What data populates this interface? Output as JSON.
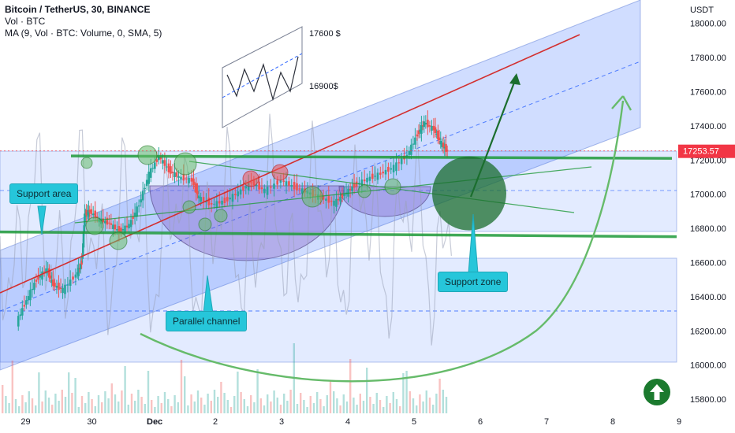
{
  "legend": {
    "title": "Bitcoin / TetherUS, 30, BINANCE",
    "vol": "Vol · BTC",
    "ma": "MA (9, Vol · BTC: Volume, 0, SMA, 5)"
  },
  "currency": "USDT",
  "price_badge": "17253.57",
  "callouts": {
    "support_area": "Support area",
    "parallel_channel": "Parallel channel",
    "support_zone": "Support zone"
  },
  "pattern": {
    "upper": "17600 $",
    "lower": "16900$"
  },
  "colors": {
    "channel_fill": "#2962ff",
    "green": "#1f9a3a",
    "red": "#d32f2f",
    "callout": "#26c6da",
    "badge": "#f23645",
    "candle_up": "#26a69a",
    "candle_down": "#ef5350"
  },
  "icons": {
    "up": "arrow-up-circle-icon"
  },
  "chart_data": {
    "type": "candlestick",
    "title": "Bitcoin / TetherUS, 30, BINANCE",
    "ylabel": "USDT",
    "ylim": [
      15720,
      18140
    ],
    "y_ticks": [
      "18000.00",
      "17800.00",
      "17600.00",
      "17400.00",
      "17200.00",
      "17000.00",
      "16800.00",
      "16600.00",
      "16400.00",
      "16200.00",
      "16000.00",
      "15800.00"
    ],
    "x_ticks": [
      "29",
      "30",
      "Dec",
      "2",
      "3",
      "4",
      "5",
      "6",
      "7",
      "8",
      "9"
    ],
    "last_price": 17253.57,
    "price_path": [
      {
        "day": -2.0,
        "price": 16250
      },
      {
        "day": -1.85,
        "price": 16380
      },
      {
        "day": -1.7,
        "price": 16500
      },
      {
        "day": -1.55,
        "price": 16560
      },
      {
        "day": -1.45,
        "price": 16470
      },
      {
        "day": -1.3,
        "price": 16440
      },
      {
        "day": -1.1,
        "price": 16530
      },
      {
        "day": -1.02,
        "price": 16600
      },
      {
        "day": -0.98,
        "price": 16880
      },
      {
        "day": -0.9,
        "price": 16900
      },
      {
        "day": -0.75,
        "price": 16850
      },
      {
        "day": -0.6,
        "price": 16830
      },
      {
        "day": -0.45,
        "price": 16780
      },
      {
        "day": -0.3,
        "price": 16820
      },
      {
        "day": -0.15,
        "price": 16940
      },
      {
        "day": 0.0,
        "price": 17120
      },
      {
        "day": 0.15,
        "price": 17220
      },
      {
        "day": 0.3,
        "price": 17140
      },
      {
        "day": 0.45,
        "price": 17100
      },
      {
        "day": 0.65,
        "price": 17080
      },
      {
        "day": 0.75,
        "price": 16980
      },
      {
        "day": 0.95,
        "price": 16940
      },
      {
        "day": 1.15,
        "price": 16960
      },
      {
        "day": 1.35,
        "price": 17010
      },
      {
        "day": 1.55,
        "price": 17070
      },
      {
        "day": 1.75,
        "price": 17020
      },
      {
        "day": 2.0,
        "price": 17080
      },
      {
        "day": 2.2,
        "price": 17040
      },
      {
        "day": 2.4,
        "price": 17010
      },
      {
        "day": 2.6,
        "price": 16980
      },
      {
        "day": 2.8,
        "price": 16950
      },
      {
        "day": 2.95,
        "price": 17000
      },
      {
        "day": 3.1,
        "price": 17050
      },
      {
        "day": 3.3,
        "price": 17090
      },
      {
        "day": 3.5,
        "price": 17120
      },
      {
        "day": 3.7,
        "price": 17160
      },
      {
        "day": 3.9,
        "price": 17230
      },
      {
        "day": 4.05,
        "price": 17350
      },
      {
        "day": 4.15,
        "price": 17420
      },
      {
        "day": 4.3,
        "price": 17380
      },
      {
        "day": 4.4,
        "price": 17300
      },
      {
        "day": 4.5,
        "price": 17250
      }
    ],
    "annotations": {
      "support_lines": [
        17210,
        16770
      ],
      "support_zone_center": {
        "day": 5.02,
        "price": 17060
      },
      "projection_arrow_target": {
        "day": 5.55,
        "price": 17700
      }
    }
  }
}
